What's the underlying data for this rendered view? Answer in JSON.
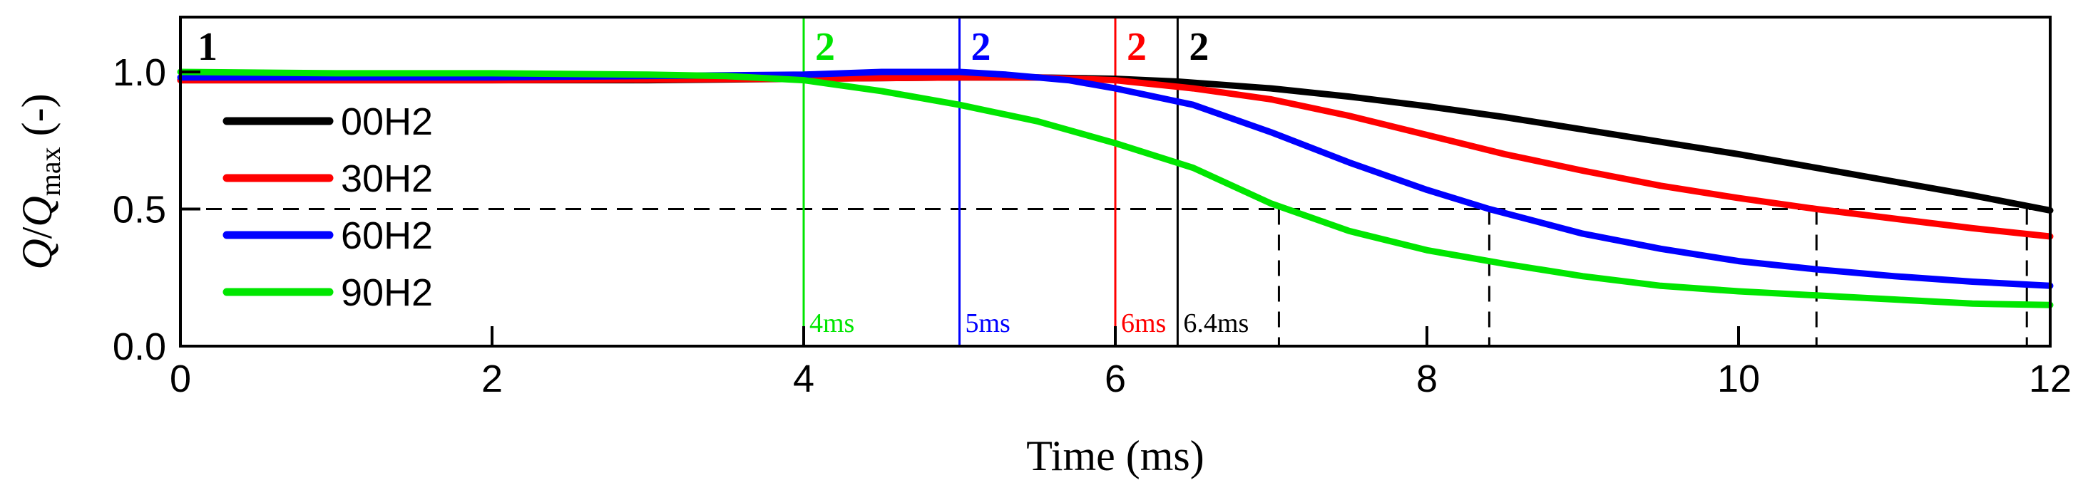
{
  "chart_data": {
    "type": "line",
    "xlabel": "Time (ms)",
    "ylabel": {
      "q": "Q",
      "slash": "/",
      "qmax": "Q",
      "sub": "max",
      "unit": " (-)"
    },
    "xlim": [
      0,
      12
    ],
    "ylim": [
      0,
      1.2
    ],
    "xticks": [
      0,
      2,
      4,
      6,
      8,
      10,
      12
    ],
    "xtick_labels": [
      "0",
      "2",
      "4",
      "6",
      "8",
      "10",
      "12"
    ],
    "yticks": [
      0.0,
      0.5,
      1.0
    ],
    "ytick_labels": [
      "0.0",
      "0.5",
      "1.0"
    ],
    "legend_position": "left",
    "reference_line": {
      "y": 0.5,
      "style": "dashed"
    },
    "series": [
      {
        "name": "00H2",
        "color": "#000000",
        "points": [
          [
            0,
            0.97
          ],
          [
            1,
            0.97
          ],
          [
            2,
            0.97
          ],
          [
            3,
            0.97
          ],
          [
            4,
            0.975
          ],
          [
            5,
            0.98
          ],
          [
            5.5,
            0.98
          ],
          [
            6,
            0.975
          ],
          [
            6.4,
            0.965
          ],
          [
            7,
            0.94
          ],
          [
            7.5,
            0.91
          ],
          [
            8,
            0.875
          ],
          [
            8.5,
            0.835
          ],
          [
            9,
            0.79
          ],
          [
            9.5,
            0.745
          ],
          [
            10,
            0.7
          ],
          [
            10.5,
            0.65
          ],
          [
            11,
            0.6
          ],
          [
            11.5,
            0.55
          ],
          [
            12,
            0.495
          ]
        ]
      },
      {
        "name": "30H2",
        "color": "#ff0000",
        "points": [
          [
            0,
            0.97
          ],
          [
            2,
            0.97
          ],
          [
            4,
            0.975
          ],
          [
            5,
            0.98
          ],
          [
            5.5,
            0.98
          ],
          [
            6,
            0.97
          ],
          [
            6.5,
            0.94
          ],
          [
            7,
            0.9
          ],
          [
            7.5,
            0.84
          ],
          [
            8,
            0.77
          ],
          [
            8.5,
            0.7
          ],
          [
            9,
            0.64
          ],
          [
            9.5,
            0.585
          ],
          [
            10,
            0.54
          ],
          [
            10.5,
            0.5
          ],
          [
            11,
            0.465
          ],
          [
            11.5,
            0.43
          ],
          [
            12,
            0.4
          ]
        ]
      },
      {
        "name": "60H2",
        "color": "#0000ff",
        "points": [
          [
            0,
            0.98
          ],
          [
            2,
            0.98
          ],
          [
            4,
            0.99
          ],
          [
            4.5,
            1.0
          ],
          [
            5,
            1.0
          ],
          [
            5.3,
            0.99
          ],
          [
            5.7,
            0.97
          ],
          [
            6,
            0.94
          ],
          [
            6.5,
            0.88
          ],
          [
            7,
            0.78
          ],
          [
            7.5,
            0.67
          ],
          [
            8,
            0.57
          ],
          [
            8.4,
            0.5
          ],
          [
            9,
            0.41
          ],
          [
            9.5,
            0.355
          ],
          [
            10,
            0.31
          ],
          [
            10.5,
            0.28
          ],
          [
            11,
            0.255
          ],
          [
            11.5,
            0.235
          ],
          [
            12,
            0.22
          ]
        ]
      },
      {
        "name": "90H2",
        "color": "#00e600",
        "points": [
          [
            0,
            1.0
          ],
          [
            1,
            0.995
          ],
          [
            2,
            0.995
          ],
          [
            3,
            0.99
          ],
          [
            3.5,
            0.985
          ],
          [
            4,
            0.97
          ],
          [
            4.5,
            0.93
          ],
          [
            5,
            0.88
          ],
          [
            5.5,
            0.82
          ],
          [
            6,
            0.74
          ],
          [
            6.5,
            0.65
          ],
          [
            7,
            0.52
          ],
          [
            7.5,
            0.42
          ],
          [
            8,
            0.35
          ],
          [
            8.5,
            0.3
          ],
          [
            9,
            0.255
          ],
          [
            9.5,
            0.22
          ],
          [
            10,
            0.2
          ],
          [
            10.5,
            0.185
          ],
          [
            11,
            0.17
          ],
          [
            11.5,
            0.155
          ],
          [
            12,
            0.15
          ]
        ]
      }
    ],
    "vertical_markers": [
      {
        "x": 4.0,
        "color": "#00e600",
        "label": "2",
        "ms_label": "4ms"
      },
      {
        "x": 5.0,
        "color": "#0000ff",
        "label": "2",
        "ms_label": "5ms"
      },
      {
        "x": 6.0,
        "color": "#ff0000",
        "label": "2",
        "ms_label": "6ms"
      },
      {
        "x": 6.4,
        "color": "#000000",
        "label": "2",
        "ms_label": "6.4ms"
      }
    ],
    "start_marker": {
      "x": 0,
      "label": "1",
      "color": "#000000"
    },
    "half_drop_times": [
      7.05,
      8.4,
      10.5,
      11.85
    ]
  }
}
